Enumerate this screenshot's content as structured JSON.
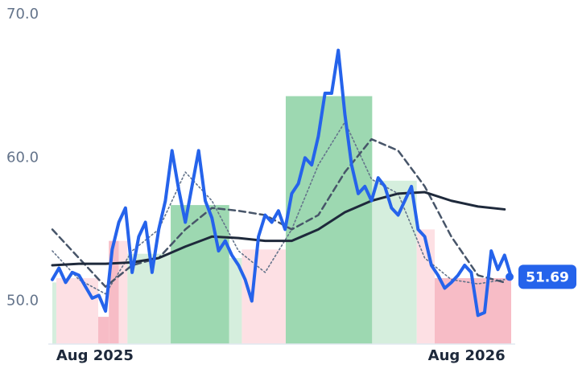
{
  "chart_data": {
    "type": "line",
    "xlim": [
      0,
      69
    ],
    "ylim": [
      47,
      70
    ],
    "xticks": [
      {
        "value": 6.4,
        "label": "Aug 2025"
      },
      {
        "value": 62.3,
        "label": "Aug 2026"
      }
    ],
    "yticks": [
      {
        "value": 50,
        "label": "50.0"
      },
      {
        "value": 60,
        "label": "60.0"
      },
      {
        "value": 70,
        "label": "70.0"
      }
    ],
    "bands": [
      {
        "x": [
          0,
          0.6
        ],
        "value": 51.3,
        "color": "#d5eedd"
      },
      {
        "x": [
          0.6,
          6.9
        ],
        "value": 51.6,
        "color": "#fde0e4"
      },
      {
        "x": [
          6.9,
          8.5
        ],
        "value": 48.9,
        "color": "#f7bcc6"
      },
      {
        "x": [
          8.5,
          10.0
        ],
        "value": 54.2,
        "color": "#f7bcc6"
      },
      {
        "x": [
          10.0,
          11.3
        ],
        "value": 54.2,
        "color": "#fde0e4"
      },
      {
        "x": [
          11.3,
          17.8
        ],
        "value": 53.3,
        "color": "#d5eedd"
      },
      {
        "x": [
          17.8,
          26.6
        ],
        "value": 56.7,
        "color": "#9dd8b1"
      },
      {
        "x": [
          26.6,
          28.5
        ],
        "value": 53.0,
        "color": "#d5eedd"
      },
      {
        "x": [
          28.5,
          35.1
        ],
        "value": 53.6,
        "color": "#fde0e4"
      },
      {
        "x": [
          35.1,
          48.1
        ],
        "value": 64.3,
        "color": "#9dd8b1"
      },
      {
        "x": [
          48.1,
          54.8
        ],
        "value": 58.4,
        "color": "#d5eedd"
      },
      {
        "x": [
          54.8,
          57.5
        ],
        "value": 55.0,
        "color": "#fde0e4"
      },
      {
        "x": [
          57.5,
          69
        ],
        "value": 51.6,
        "color": "#f7bcc6"
      }
    ],
    "series": [
      {
        "style": "dotted",
        "color": "#64748b",
        "x": [
          0,
          4,
          8,
          12,
          16,
          20,
          24,
          28,
          32,
          36,
          40,
          44,
          48,
          52,
          56,
          60,
          64,
          68
        ],
        "values": [
          53.5,
          51.5,
          50.5,
          53.5,
          55.0,
          59.0,
          57.0,
          53.5,
          52.0,
          55.0,
          59.5,
          62.5,
          58.5,
          57.5,
          53.0,
          51.5,
          51.2,
          51.5
        ]
      },
      {
        "style": "dashed",
        "color": "#475569",
        "x": [
          0,
          4,
          8,
          12,
          16,
          20,
          24,
          28,
          32,
          36,
          40,
          44,
          48,
          52,
          56,
          60,
          64,
          68
        ],
        "values": [
          55.0,
          53.0,
          51.0,
          52.5,
          53.0,
          55.0,
          56.5,
          56.3,
          56.0,
          55.0,
          56.0,
          59.0,
          61.3,
          60.5,
          58.0,
          54.5,
          51.8,
          51.3
        ]
      },
      {
        "style": "solid",
        "color": "#1e293b",
        "x": [
          0,
          4,
          8,
          12,
          16,
          20,
          24,
          28,
          32,
          36,
          40,
          44,
          48,
          52,
          56,
          60,
          64,
          68
        ],
        "values": [
          52.5,
          52.6,
          52.6,
          52.7,
          53.0,
          53.8,
          54.5,
          54.4,
          54.2,
          54.2,
          55.0,
          56.2,
          57.0,
          57.5,
          57.6,
          57.0,
          56.6,
          56.4
        ]
      },
      {
        "style": "main",
        "color": "#2563eb",
        "x": [
          0,
          1,
          2,
          3,
          4,
          5,
          6,
          7,
          8,
          9,
          10,
          11,
          12,
          13,
          14,
          15,
          16,
          17,
          18,
          19,
          20,
          21,
          22,
          23,
          24,
          25,
          26,
          27,
          28,
          29,
          30,
          31,
          32,
          33,
          34,
          35,
          36,
          37,
          38,
          39,
          40,
          41,
          42,
          43,
          44,
          45,
          46,
          47,
          48,
          49,
          50,
          51,
          52,
          53,
          54,
          55,
          56,
          57,
          58,
          59,
          60,
          61,
          62,
          63,
          64,
          65,
          66,
          67,
          68,
          69
        ],
        "values": [
          51.5,
          52.3,
          51.3,
          52.0,
          51.8,
          51.0,
          50.2,
          50.4,
          49.3,
          53.6,
          55.5,
          56.5,
          52.0,
          54.5,
          55.5,
          52.0,
          55.0,
          57.0,
          60.5,
          57.8,
          55.5,
          58.0,
          60.5,
          57.0,
          55.8,
          53.5,
          54.2,
          53.2,
          52.5,
          51.5,
          50.0,
          54.5,
          56.0,
          55.5,
          56.3,
          55.0,
          57.5,
          58.2,
          60.0,
          59.5,
          61.5,
          64.5,
          64.5,
          67.5,
          63.0,
          59.5,
          57.5,
          58.0,
          57.0,
          58.6,
          58.0,
          56.5,
          56.0,
          57.0,
          58.0,
          55.0,
          54.5,
          52.5,
          51.8,
          50.9,
          51.3,
          51.8,
          52.5,
          52.0,
          49.0,
          49.2,
          53.5,
          52.2,
          53.2,
          51.69
        ]
      }
    ]
  }
}
